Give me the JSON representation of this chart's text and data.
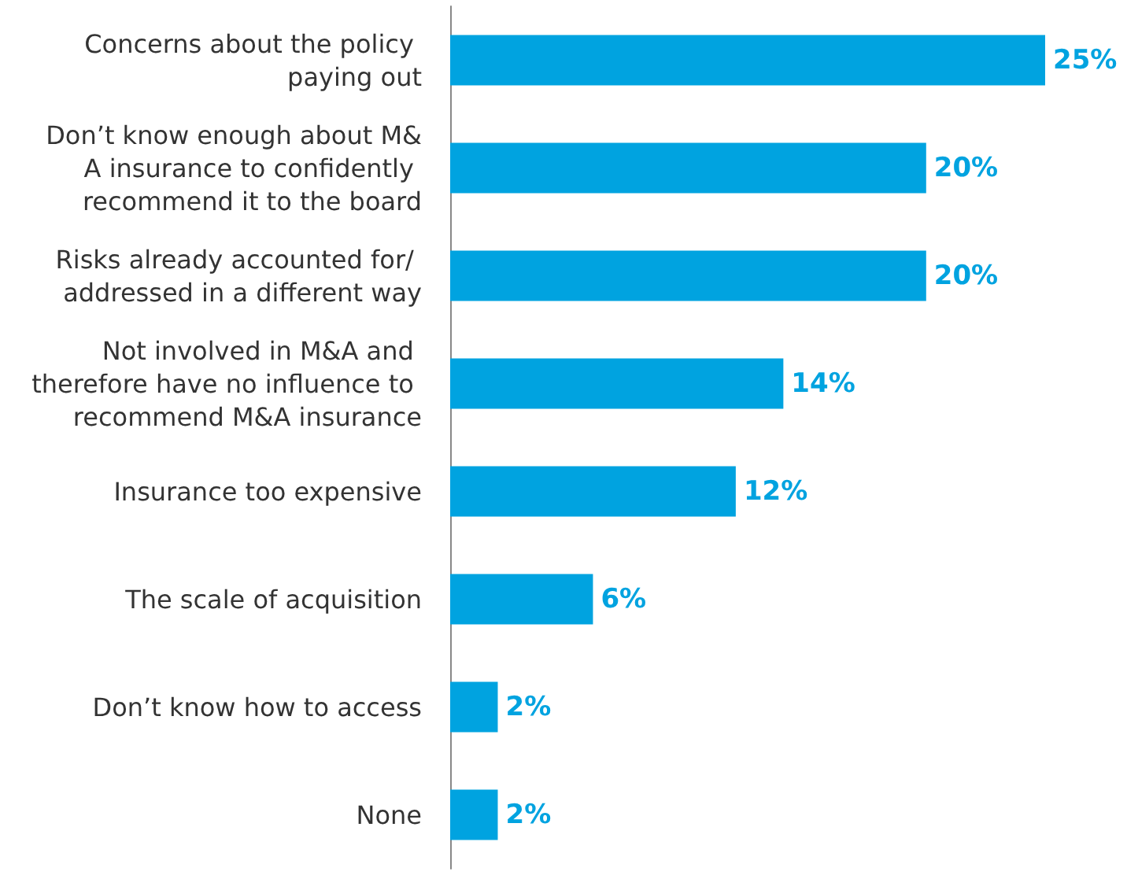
{
  "chart_data": {
    "type": "bar",
    "orientation": "horizontal",
    "categories": [
      "Concerns about the policy paying out",
      "Don’t know enough about M&A insurance to confidently recommend it to the board",
      "Risks already accounted for/ addressed in a different way",
      "Not involved in M&A and therefore have no influence to recommend M&A insurance",
      "Insurance too expensive",
      "The scale of acquisition",
      "Don’t know how to access",
      "None"
    ],
    "values": [
      25,
      20,
      20,
      14,
      12,
      6,
      2,
      2
    ],
    "value_labels": [
      "25%",
      "20%",
      "20%",
      "14%",
      "12%",
      "6%",
      "2%",
      "2%"
    ],
    "color": "#00a3e0"
  }
}
